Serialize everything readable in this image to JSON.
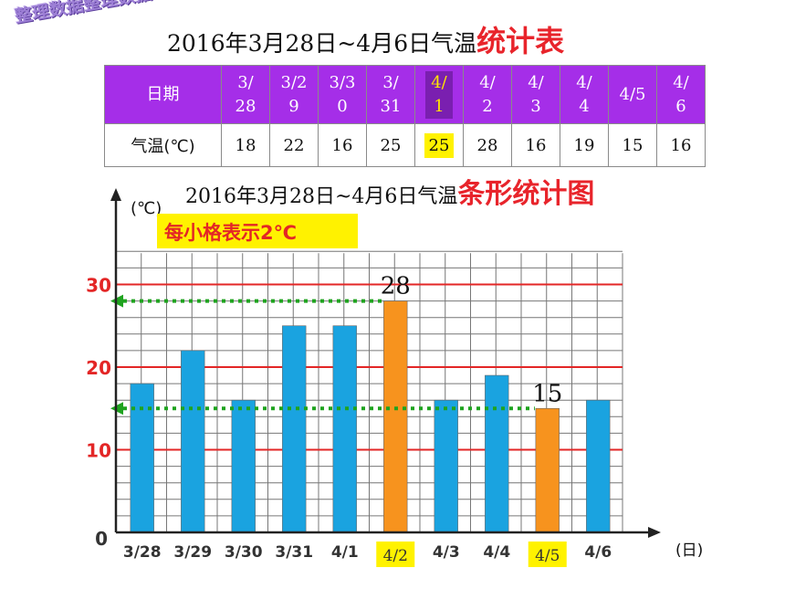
{
  "stamp": "整理数据整理数据",
  "table_title_main": "2016年3月28日~4月6日气温",
  "table_title_accent": "统计表",
  "chart_title_main": "2016年3月28日~4月6日气温",
  "chart_title_accent": "条形统计图",
  "table": {
    "row1_label": "日期",
    "row2_label": "气温(℃)",
    "dates_lines": [
      [
        "3/",
        "28"
      ],
      [
        "3/2",
        "9"
      ],
      [
        "3/3",
        "0"
      ],
      [
        "3/",
        "31"
      ],
      [
        "4/",
        "1"
      ],
      [
        "4/",
        "2"
      ],
      [
        "4/",
        "3"
      ],
      [
        "4/",
        "4"
      ],
      [
        "4/5"
      ],
      [
        "4/",
        "6"
      ]
    ],
    "temps": [
      "18",
      "22",
      "16",
      "25",
      "25",
      "28",
      "16",
      "19",
      "15",
      "16"
    ],
    "highlight_index": 4
  },
  "chart_data": {
    "type": "bar",
    "title": "2016年3月28日~4月6日气温条形统计图",
    "ylabel": "(℃)",
    "xlabel": "(日)",
    "note": "每小格表示2℃",
    "categories": [
      "3/28",
      "3/29",
      "3/30",
      "3/31",
      "4/1",
      "4/2",
      "4/3",
      "4/4",
      "4/5",
      "4/6"
    ],
    "values": [
      18,
      22,
      16,
      25,
      25,
      28,
      16,
      19,
      15,
      16
    ],
    "ylim": [
      0,
      36
    ],
    "yticks": [
      "0",
      "10",
      "20",
      "30"
    ],
    "highlighted": [
      "4/2",
      "4/5"
    ],
    "data_labels": [
      {
        "category": "4/2",
        "text": "28"
      },
      {
        "category": "4/5",
        "text": "15"
      }
    ],
    "reference_lines": [
      30,
      20,
      10
    ],
    "dashed_guides": [
      28,
      15
    ],
    "colors": {
      "bar": "#1aa3e0",
      "highlight": "#f7931e",
      "grid": "#777777",
      "major": "#e32626",
      "guide": "#1fa31f",
      "label_bg": "#fff200"
    }
  }
}
